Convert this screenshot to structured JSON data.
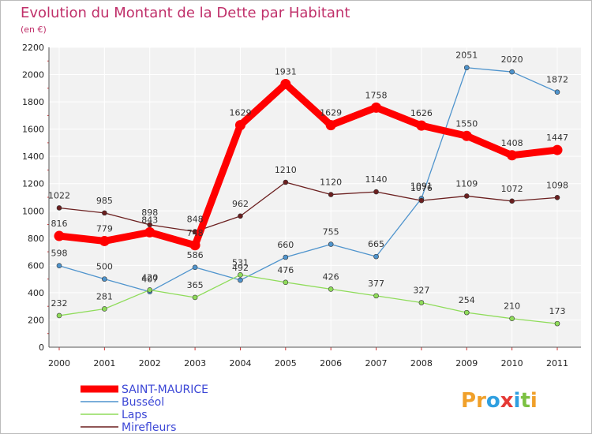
{
  "chart_data": {
    "type": "line",
    "title": "Evolution du Montant de la Dette par Habitant",
    "subtitle": "(en €)",
    "x": [
      "2000",
      "2001",
      "2002",
      "2003",
      "2004",
      "2005",
      "2006",
      "2007",
      "2008",
      "2009",
      "2010",
      "2011"
    ],
    "ylim": [
      0,
      2200
    ],
    "yticks": [
      0,
      200,
      400,
      600,
      800,
      1000,
      1200,
      1400,
      1600,
      1800,
      2000,
      2200
    ],
    "grid": true,
    "legend_position": "bottom-left",
    "series": [
      {
        "name": "SAINT-MAURICE",
        "color": "#ff0000",
        "values": [
          816,
          779,
          843,
          748,
          1629,
          1931,
          1629,
          1758,
          1626,
          1550,
          1408,
          1447
        ]
      },
      {
        "name": "Busséol",
        "color": "#4f94cd",
        "values": [
          598,
          500,
          407,
          586,
          492,
          660,
          755,
          665,
          1091,
          2051,
          2020,
          1872
        ]
      },
      {
        "name": "Laps",
        "color": "#8fdc5a",
        "values": [
          232,
          281,
          420,
          365,
          531,
          476,
          426,
          377,
          327,
          254,
          210,
          173
        ]
      },
      {
        "name": "Mirefleurs",
        "color": "#6b1f1f",
        "values": [
          1022,
          985,
          898,
          848,
          962,
          1210,
          1120,
          1140,
          1076,
          1109,
          1072,
          1098
        ]
      }
    ]
  },
  "logo": {
    "text": "Proxiti",
    "letters": [
      {
        "ch": "P",
        "color": "#f0a02a"
      },
      {
        "ch": "r",
        "color": "#f0a02a"
      },
      {
        "ch": "o",
        "color": "#2f9fe0"
      },
      {
        "ch": "x",
        "color": "#e53935"
      },
      {
        "ch": "i",
        "color": "#2f9fe0"
      },
      {
        "ch": "t",
        "color": "#7cc142"
      },
      {
        "ch": "i",
        "color": "#f0a02a"
      }
    ]
  }
}
